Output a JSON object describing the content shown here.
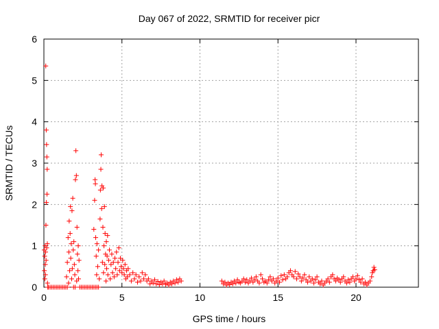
{
  "chart_data": {
    "type": "scatter",
    "title": "Day 067 of 2022, SRMTID for receiver picr",
    "xlabel": "GPS time / hours",
    "ylabel": "SRMTID / TECUs",
    "xlim": [
      0,
      24
    ],
    "ylim": [
      0,
      6
    ],
    "xticks": [
      0,
      5,
      10,
      15,
      20
    ],
    "yticks": [
      0,
      1,
      2,
      3,
      4,
      5,
      6
    ],
    "grid": true,
    "marker": "plus",
    "color": "#ff0000",
    "series": [
      {
        "points": [
          [
            0.02,
            0.9
          ],
          [
            0.03,
            0.4
          ],
          [
            0.05,
            0.75
          ],
          [
            0.06,
            0.2
          ],
          [
            0.08,
            1.0
          ],
          [
            0.09,
            0.55
          ],
          [
            0.1,
            0.3
          ],
          [
            0.11,
            0.85
          ],
          [
            0.12,
            5.35
          ],
          [
            0.13,
            1.5
          ],
          [
            0.14,
            0.65
          ],
          [
            0.15,
            3.8
          ],
          [
            0.16,
            2.05
          ],
          [
            0.17,
            3.45
          ],
          [
            0.18,
            0.95
          ],
          [
            0.19,
            3.15
          ],
          [
            0.2,
            2.25
          ],
          [
            0.21,
            2.85
          ],
          [
            0.22,
            1.05
          ],
          [
            0.23,
            0.1
          ],
          [
            0.25,
            0.0
          ],
          [
            0.3,
            0.0
          ],
          [
            0.4,
            0.0
          ],
          [
            0.5,
            0.0
          ],
          [
            0.6,
            0.0
          ],
          [
            0.7,
            0.0
          ],
          [
            0.8,
            0.0
          ],
          [
            0.9,
            0.0
          ],
          [
            1.0,
            0.0
          ],
          [
            1.1,
            0.0
          ],
          [
            1.2,
            0.0
          ],
          [
            1.3,
            0.0
          ],
          [
            1.4,
            0.0
          ],
          [
            1.5,
            0.0
          ],
          [
            1.45,
            0.25
          ],
          [
            1.5,
            0.6
          ],
          [
            1.55,
            1.2
          ],
          [
            1.58,
            0.1
          ],
          [
            1.6,
            0.85
          ],
          [
            1.62,
            1.6
          ],
          [
            1.65,
            0.4
          ],
          [
            1.68,
            1.3
          ],
          [
            1.7,
            1.95
          ],
          [
            1.72,
            0.7
          ],
          [
            1.75,
            1.05
          ],
          [
            1.78,
            0.2
          ],
          [
            1.8,
            1.85
          ],
          [
            1.82,
            0.45
          ],
          [
            1.85,
            2.15
          ],
          [
            1.88,
            0.9
          ],
          [
            1.9,
            0.0
          ],
          [
            1.92,
            1.1
          ],
          [
            1.95,
            0.55
          ],
          [
            1.98,
            0.3
          ],
          [
            2.0,
            0.0
          ],
          [
            2.02,
            2.6
          ],
          [
            2.05,
            3.3
          ],
          [
            2.08,
            2.7
          ],
          [
            2.1,
            0.15
          ],
          [
            2.12,
            1.45
          ],
          [
            2.15,
            0.8
          ],
          [
            2.18,
            0.4
          ],
          [
            2.2,
            1.0
          ],
          [
            2.22,
            0.2
          ],
          [
            2.25,
            0.65
          ],
          [
            2.3,
            0.0
          ],
          [
            2.4,
            0.0
          ],
          [
            2.5,
            0.0
          ],
          [
            2.6,
            0.0
          ],
          [
            2.7,
            0.0
          ],
          [
            2.8,
            0.0
          ],
          [
            2.9,
            0.0
          ],
          [
            3.0,
            0.0
          ],
          [
            3.1,
            0.0
          ],
          [
            3.2,
            0.0
          ],
          [
            3.3,
            0.0
          ],
          [
            3.4,
            0.0
          ],
          [
            3.5,
            0.0
          ],
          [
            3.2,
            1.4
          ],
          [
            3.25,
            2.1
          ],
          [
            3.28,
            2.6
          ],
          [
            3.3,
            2.5
          ],
          [
            3.32,
            1.2
          ],
          [
            3.35,
            0.75
          ],
          [
            3.38,
            0.3
          ],
          [
            3.4,
            1.05
          ],
          [
            3.45,
            0.5
          ],
          [
            3.5,
            0.9
          ],
          [
            3.55,
            0.2
          ],
          [
            3.6,
            1.65
          ],
          [
            3.62,
            2.35
          ],
          [
            3.65,
            2.85
          ],
          [
            3.67,
            3.2
          ],
          [
            3.7,
            1.9
          ],
          [
            3.72,
            2.45
          ],
          [
            3.75,
            0.6
          ],
          [
            3.78,
            1.45
          ],
          [
            3.8,
            2.4
          ],
          [
            3.82,
            0.35
          ],
          [
            3.85,
            1.0
          ],
          [
            3.88,
            1.95
          ],
          [
            3.9,
            0.55
          ],
          [
            3.92,
            1.3
          ],
          [
            3.95,
            0.8
          ],
          [
            3.98,
            0.15
          ],
          [
            4.0,
            1.1
          ],
          [
            4.02,
            0.45
          ],
          [
            4.05,
            0.75
          ],
          [
            4.08,
            1.25
          ],
          [
            4.1,
            0.3
          ],
          [
            4.15,
            0.65
          ],
          [
            4.2,
            0.9
          ],
          [
            4.25,
            0.2
          ],
          [
            4.3,
            0.55
          ],
          [
            4.35,
            0.8
          ],
          [
            4.4,
            0.35
          ],
          [
            4.45,
            0.6
          ],
          [
            4.5,
            0.25
          ],
          [
            4.55,
            0.7
          ],
          [
            4.6,
            0.45
          ],
          [
            4.65,
            0.85
          ],
          [
            4.7,
            0.3
          ],
          [
            4.75,
            0.6
          ],
          [
            4.8,
            0.95
          ],
          [
            4.85,
            0.4
          ],
          [
            4.9,
            0.7
          ],
          [
            4.95,
            0.5
          ],
          [
            5.0,
            0.35
          ],
          [
            5.05,
            0.65
          ],
          [
            5.1,
            0.45
          ],
          [
            5.15,
            0.3
          ],
          [
            5.2,
            0.55
          ],
          [
            5.25,
            0.2
          ],
          [
            5.3,
            0.4
          ],
          [
            5.35,
            0.25
          ],
          [
            5.4,
            0.45
          ],
          [
            5.5,
            0.3
          ],
          [
            5.6,
            0.15
          ],
          [
            5.7,
            0.35
          ],
          [
            5.8,
            0.2
          ],
          [
            5.9,
            0.3
          ],
          [
            6.0,
            0.12
          ],
          [
            6.1,
            0.25
          ],
          [
            6.2,
            0.15
          ],
          [
            6.3,
            0.35
          ],
          [
            6.4,
            0.2
          ],
          [
            6.5,
            0.3
          ],
          [
            6.6,
            0.15
          ],
          [
            6.7,
            0.2
          ],
          [
            6.8,
            0.08
          ],
          [
            6.9,
            0.15
          ],
          [
            7.0,
            0.1
          ],
          [
            7.1,
            0.18
          ],
          [
            7.2,
            0.08
          ],
          [
            7.3,
            0.14
          ],
          [
            7.4,
            0.06
          ],
          [
            7.5,
            0.12
          ],
          [
            7.6,
            0.08
          ],
          [
            7.7,
            0.15
          ],
          [
            7.8,
            0.07
          ],
          [
            7.9,
            0.1
          ],
          [
            8.0,
            0.05
          ],
          [
            8.1,
            0.12
          ],
          [
            8.2,
            0.08
          ],
          [
            8.3,
            0.15
          ],
          [
            8.4,
            0.1
          ],
          [
            8.5,
            0.18
          ],
          [
            8.6,
            0.12
          ],
          [
            8.7,
            0.2
          ],
          [
            8.8,
            0.15
          ],
          [
            11.4,
            0.15
          ],
          [
            11.5,
            0.08
          ],
          [
            11.6,
            0.12
          ],
          [
            11.7,
            0.05
          ],
          [
            11.8,
            0.1
          ],
          [
            11.9,
            0.06
          ],
          [
            12.0,
            0.12
          ],
          [
            12.1,
            0.08
          ],
          [
            12.2,
            0.15
          ],
          [
            12.3,
            0.1
          ],
          [
            12.4,
            0.18
          ],
          [
            12.5,
            0.12
          ],
          [
            12.6,
            0.1
          ],
          [
            12.7,
            0.15
          ],
          [
            12.8,
            0.2
          ],
          [
            12.9,
            0.12
          ],
          [
            13.0,
            0.18
          ],
          [
            13.1,
            0.1
          ],
          [
            13.2,
            0.15
          ],
          [
            13.3,
            0.22
          ],
          [
            13.4,
            0.12
          ],
          [
            13.5,
            0.18
          ],
          [
            13.6,
            0.25
          ],
          [
            13.7,
            0.15
          ],
          [
            13.8,
            0.1
          ],
          [
            13.9,
            0.3
          ],
          [
            14.0,
            0.2
          ],
          [
            14.1,
            0.12
          ],
          [
            14.2,
            0.15
          ],
          [
            14.3,
            0.1
          ],
          [
            14.4,
            0.18
          ],
          [
            14.5,
            0.25
          ],
          [
            14.6,
            0.15
          ],
          [
            14.7,
            0.2
          ],
          [
            14.8,
            0.1
          ],
          [
            14.9,
            0.15
          ],
          [
            15.0,
            0.22
          ],
          [
            15.1,
            0.12
          ],
          [
            15.2,
            0.28
          ],
          [
            15.3,
            0.18
          ],
          [
            15.4,
            0.3
          ],
          [
            15.5,
            0.2
          ],
          [
            15.6,
            0.25
          ],
          [
            15.7,
            0.35
          ],
          [
            15.8,
            0.4
          ],
          [
            15.9,
            0.3
          ],
          [
            16.0,
            0.25
          ],
          [
            16.1,
            0.38
          ],
          [
            16.2,
            0.2
          ],
          [
            16.3,
            0.32
          ],
          [
            16.4,
            0.25
          ],
          [
            16.5,
            0.15
          ],
          [
            16.6,
            0.22
          ],
          [
            16.7,
            0.3
          ],
          [
            16.8,
            0.18
          ],
          [
            16.9,
            0.12
          ],
          [
            17.0,
            0.25
          ],
          [
            17.1,
            0.15
          ],
          [
            17.2,
            0.2
          ],
          [
            17.3,
            0.1
          ],
          [
            17.4,
            0.18
          ],
          [
            17.5,
            0.25
          ],
          [
            17.6,
            0.12
          ],
          [
            17.7,
            0.08
          ],
          [
            17.8,
            0.15
          ],
          [
            17.9,
            0.05
          ],
          [
            18.0,
            0.1
          ],
          [
            18.1,
            0.15
          ],
          [
            18.2,
            0.2
          ],
          [
            18.3,
            0.12
          ],
          [
            18.4,
            0.25
          ],
          [
            18.5,
            0.3
          ],
          [
            18.6,
            0.2
          ],
          [
            18.7,
            0.15
          ],
          [
            18.8,
            0.22
          ],
          [
            18.9,
            0.18
          ],
          [
            19.0,
            0.12
          ],
          [
            19.1,
            0.2
          ],
          [
            19.2,
            0.25
          ],
          [
            19.3,
            0.15
          ],
          [
            19.4,
            0.1
          ],
          [
            19.5,
            0.18
          ],
          [
            19.6,
            0.12
          ],
          [
            19.7,
            0.2
          ],
          [
            19.8,
            0.25
          ],
          [
            19.9,
            0.15
          ],
          [
            20.0,
            0.2
          ],
          [
            20.1,
            0.28
          ],
          [
            20.2,
            0.18
          ],
          [
            20.3,
            0.12
          ],
          [
            20.4,
            0.2
          ],
          [
            20.5,
            0.08
          ],
          [
            20.6,
            0.12
          ],
          [
            20.7,
            0.05
          ],
          [
            20.8,
            0.1
          ],
          [
            20.9,
            0.15
          ],
          [
            21.0,
            0.25
          ],
          [
            21.05,
            0.35
          ],
          [
            21.1,
            0.4
          ],
          [
            21.15,
            0.48
          ],
          [
            21.2,
            0.42
          ]
        ]
      }
    ]
  }
}
